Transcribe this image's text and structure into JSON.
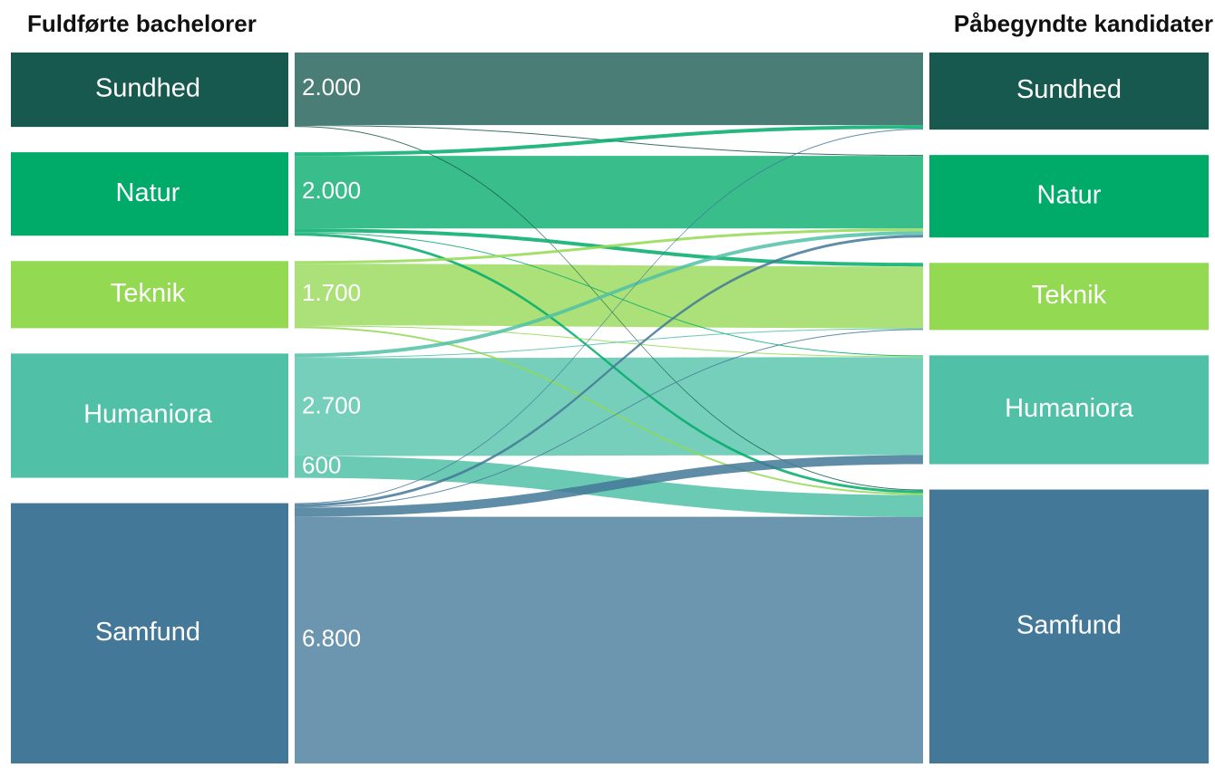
{
  "chart_data": {
    "type": "sankey",
    "left_title": "Fuldførte bachelorer",
    "right_title": "Påbegyndte kandidater",
    "nodes": [
      {
        "name": "Sundhed",
        "color": "#17594e"
      },
      {
        "name": "Natur",
        "color": "#00ab6a"
      },
      {
        "name": "Teknik",
        "color": "#93d952"
      },
      {
        "name": "Humaniora",
        "color": "#50c1a6"
      },
      {
        "name": "Samfund",
        "color": "#437898"
      }
    ],
    "links": [
      {
        "source": 0,
        "target": 0,
        "value": 2000,
        "value_label": "2.000"
      },
      {
        "source": 0,
        "target": 1,
        "value": 25
      },
      {
        "source": 0,
        "target": 4,
        "value": 25
      },
      {
        "source": 1,
        "target": 0,
        "value": 100
      },
      {
        "source": 1,
        "target": 1,
        "value": 2000,
        "value_label": "2.000"
      },
      {
        "source": 1,
        "target": 2,
        "value": 100
      },
      {
        "source": 1,
        "target": 3,
        "value": 25
      },
      {
        "source": 1,
        "target": 4,
        "value": 75
      },
      {
        "source": 2,
        "target": 1,
        "value": 75
      },
      {
        "source": 2,
        "target": 2,
        "value": 1700,
        "value_label": "1.700"
      },
      {
        "source": 2,
        "target": 3,
        "value": 25
      },
      {
        "source": 2,
        "target": 4,
        "value": 50
      },
      {
        "source": 3,
        "target": 1,
        "value": 100
      },
      {
        "source": 3,
        "target": 2,
        "value": 25
      },
      {
        "source": 3,
        "target": 3,
        "value": 2700,
        "value_label": "2.700"
      },
      {
        "source": 3,
        "target": 4,
        "value": 600,
        "value_label": "600"
      },
      {
        "source": 4,
        "target": 0,
        "value": 25
      },
      {
        "source": 4,
        "target": 1,
        "value": 75
      },
      {
        "source": 4,
        "target": 2,
        "value": 25
      },
      {
        "source": 4,
        "target": 3,
        "value": 250
      },
      {
        "source": 4,
        "target": 4,
        "value": 6800,
        "value_label": "6.800"
      }
    ]
  }
}
